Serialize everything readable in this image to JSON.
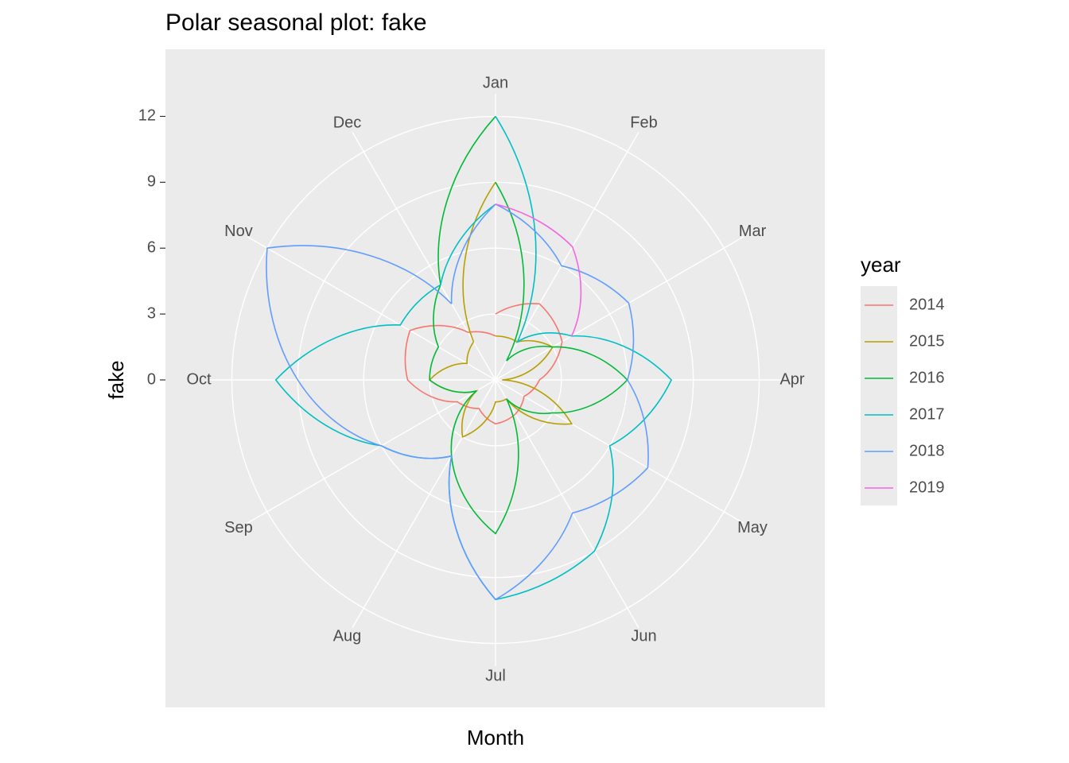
{
  "chart_data": {
    "type": "polar-line",
    "title": "Polar seasonal plot: fake",
    "x_label": "Month",
    "y_label": "fake",
    "legend_title": "year",
    "categories": [
      "Jan",
      "Feb",
      "Mar",
      "Apr",
      "May",
      "Jun",
      "Jul",
      "Aug",
      "Sep",
      "Oct",
      "Nov",
      "Dec"
    ],
    "ylim": [
      0,
      13.5
    ],
    "yticks": [
      0,
      3,
      6,
      9,
      12
    ],
    "grid": true,
    "legend": "right",
    "series": [
      {
        "name": "2014",
        "color": "#F8766D",
        "values": [
          3,
          4,
          3.5,
          2,
          1.5,
          1.8,
          2,
          1.5,
          2,
          4,
          4.5,
          2.5
        ]
      },
      {
        "name": "2015",
        "color": "#B79F00",
        "values": [
          2,
          2,
          3,
          0.3,
          4,
          1,
          1,
          3,
          1,
          3,
          1.5,
          2
        ]
      },
      {
        "name": "2016",
        "color": "#00BA38",
        "values": [
          9,
          1,
          3,
          6,
          3,
          1,
          7,
          4,
          1,
          3,
          3,
          5
        ]
      },
      {
        "name": "2017",
        "color": "#00BFC4",
        "values": [
          12,
          2,
          4,
          8,
          6,
          9,
          10,
          4,
          6,
          10,
          5,
          5
        ]
      },
      {
        "name": "2018",
        "color": "#619CFF",
        "values": [
          8,
          6,
          7,
          6,
          8,
          7,
          10,
          4,
          6,
          9,
          12,
          4
        ]
      },
      {
        "name": "2019",
        "color": "#F564E3",
        "values": [
          8,
          7,
          4,
          null,
          null,
          null,
          null,
          null,
          null,
          null,
          null,
          null
        ]
      }
    ]
  }
}
